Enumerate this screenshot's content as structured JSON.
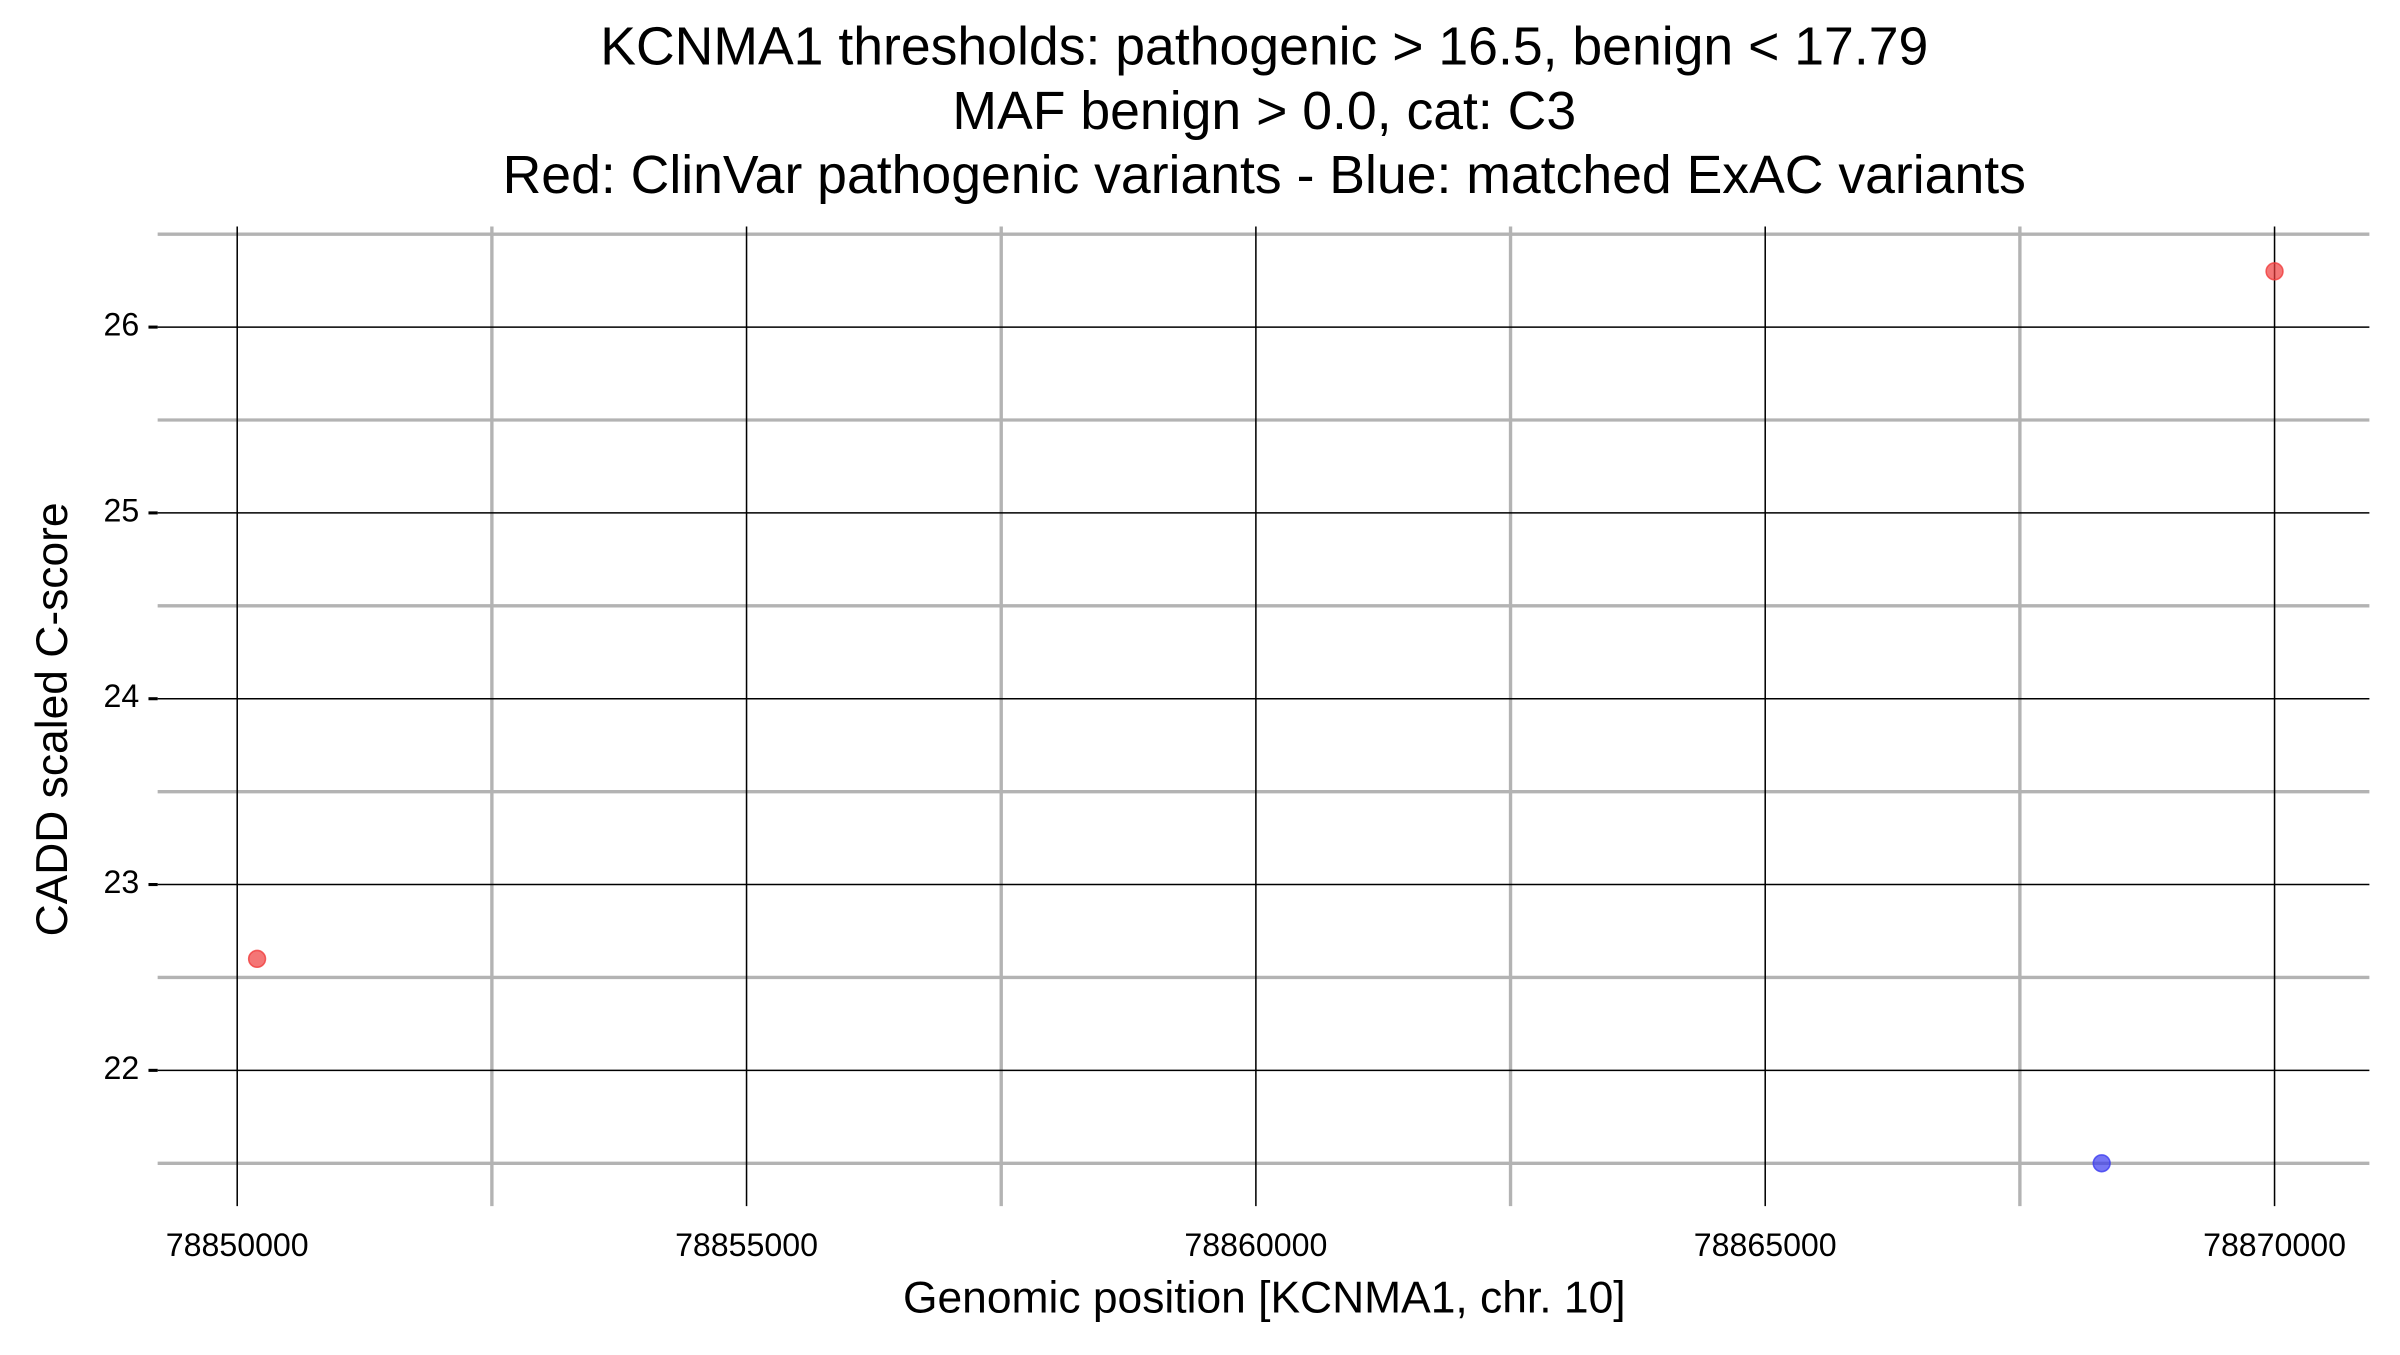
{
  "chart_data": {
    "type": "scatter",
    "title": [
      "KCNMA1 thresholds: pathogenic > 16.5, benign < 17.79",
      "MAF benign > 0.0, cat: C3",
      "Red: ClinVar pathogenic variants - Blue: matched ExAC variants"
    ],
    "xlabel": "Genomic position [KCNMA1, chr. 10]",
    "ylabel": "CADD scaled C-score",
    "series": [
      {
        "color": "#f03c3c",
        "x": [
          78850195,
          78870000
        ],
        "values": [
          22.6,
          26.3
        ]
      },
      {
        "color": "#3c3cf0",
        "x": [
          78868303
        ],
        "values": [
          21.5
        ]
      }
    ],
    "xlim": [
      78849219,
      78870931
    ],
    "xticks": [
      78850000,
      78855000,
      78860000,
      78865000,
      78870000
    ],
    "ylim": [
      21.5,
      26.5
    ],
    "yticks": [
      22,
      23,
      24,
      25,
      26
    ],
    "grid": true
  }
}
